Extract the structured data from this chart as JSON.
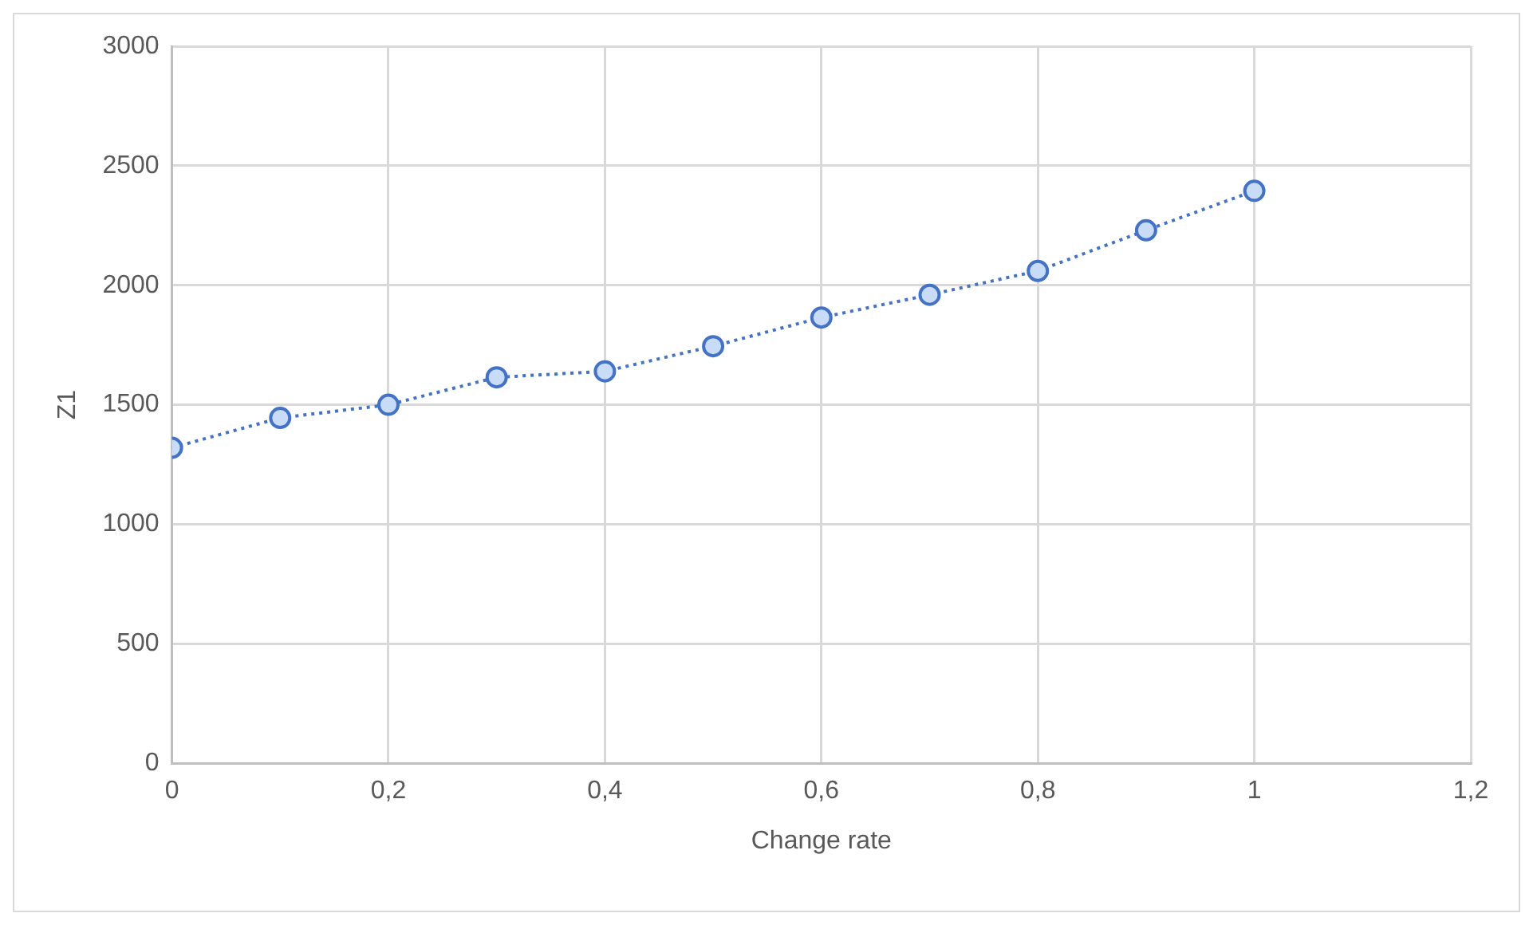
{
  "chart_data": {
    "type": "line",
    "xlabel": "Change rate",
    "ylabel": "Z1",
    "x": [
      0,
      0.1,
      0.2,
      0.3,
      0.4,
      0.5,
      0.6,
      0.7,
      0.8,
      0.9,
      1
    ],
    "series": [
      {
        "color": "#4472c4",
        "values": [
          1320,
          1445,
          1500,
          1615,
          1640,
          1745,
          1865,
          1960,
          2060,
          2230,
          2395
        ]
      }
    ],
    "xlim": [
      0,
      1.2
    ],
    "xticks": [
      0,
      {
        "value": 0.2,
        "label": "0,2"
      },
      {
        "value": 0.4,
        "label": "0,4"
      },
      {
        "value": 0.6,
        "label": "0,6"
      },
      {
        "value": 0.8,
        "label": "0,8"
      },
      1,
      {
        "value": 1.2,
        "label": "1,2"
      }
    ],
    "ylim": [
      0,
      3000
    ],
    "yticks": [
      0,
      500,
      1000,
      1500,
      2000,
      2500,
      3000
    ],
    "grid": true,
    "legend": false,
    "marker": "circle",
    "line_style": "dotted"
  }
}
